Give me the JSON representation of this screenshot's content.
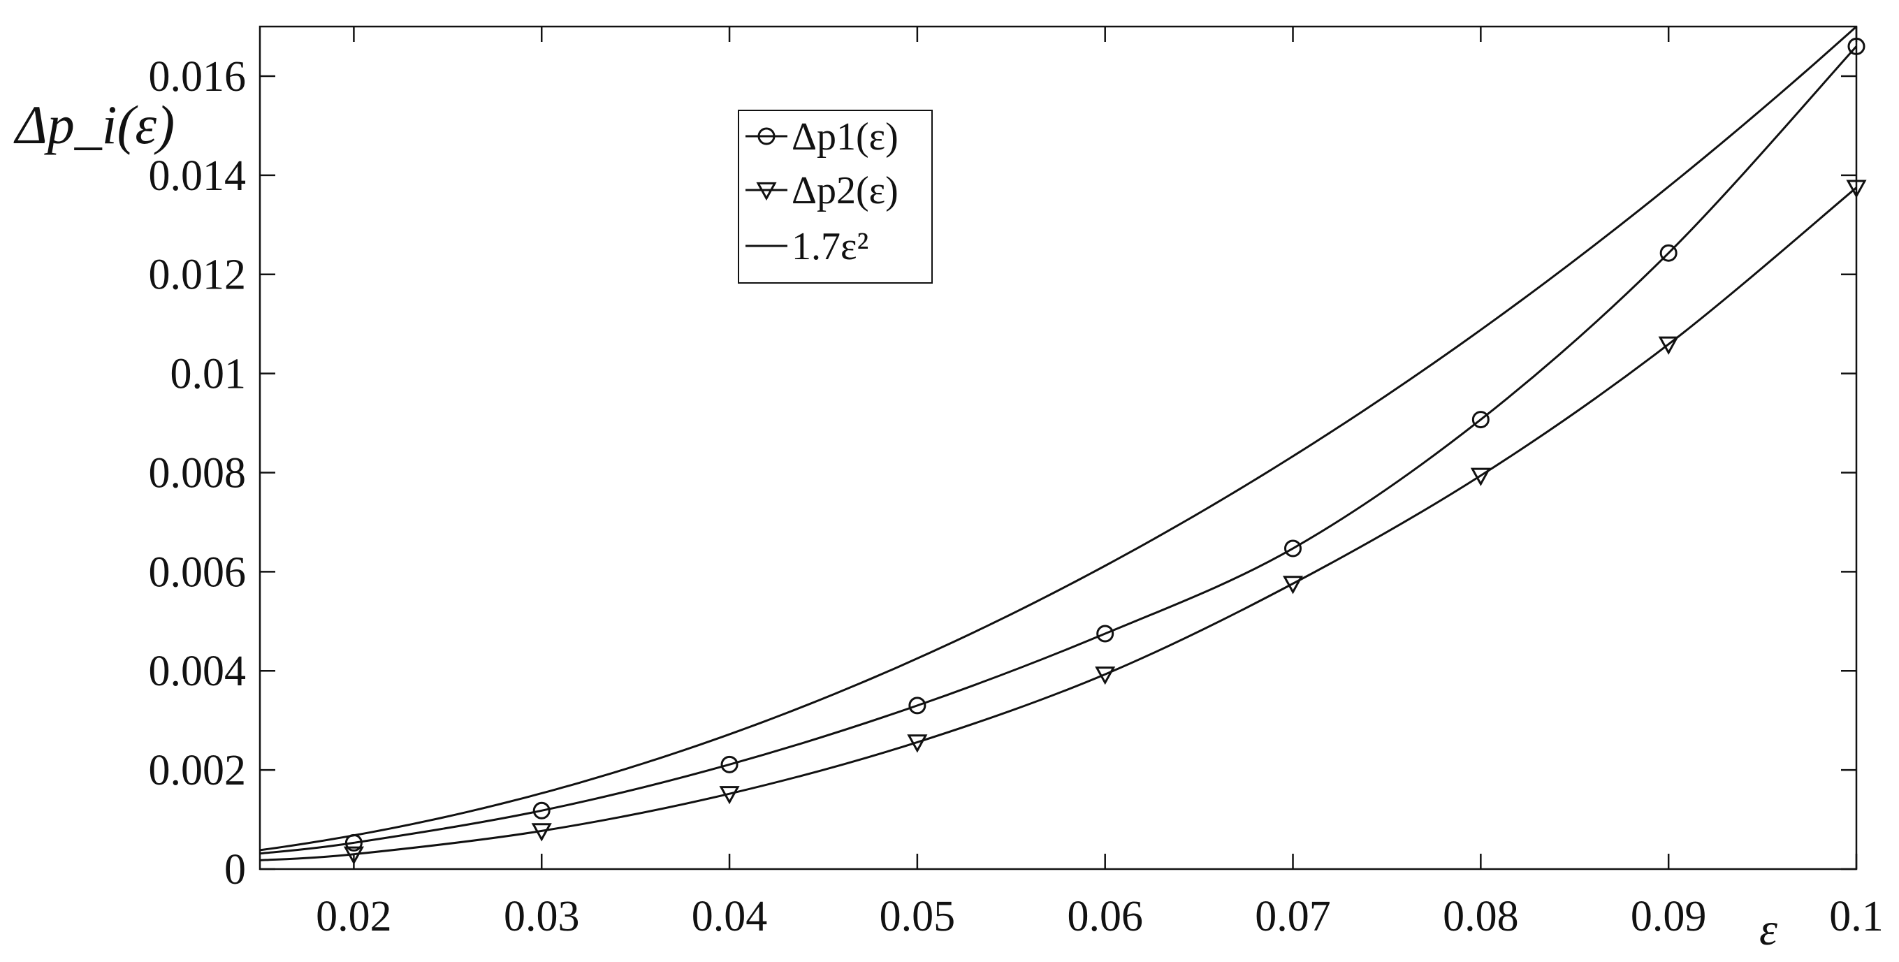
{
  "chart_data": {
    "type": "line",
    "xlabel": "ε",
    "ylabel": "Δp_i(ε)",
    "xlim": [
      0.015,
      0.1
    ],
    "ylim": [
      0,
      0.017
    ],
    "x_ticks": [
      0.02,
      0.03,
      0.04,
      0.05,
      0.06,
      0.07,
      0.08,
      0.09,
      0.1
    ],
    "x_tick_labels": [
      "0.02",
      "0.03",
      "0.04",
      "0.05",
      "0.06",
      "0.07",
      "0.08",
      "0.09",
      "0.1"
    ],
    "y_ticks": [
      0,
      0.002,
      0.004,
      0.006,
      0.008,
      0.01,
      0.012,
      0.014,
      0.016
    ],
    "y_tick_labels": [
      "0",
      "0.002",
      "0.004",
      "0.006",
      "0.008",
      "0.01",
      "0.012",
      "0.014",
      "0.016"
    ],
    "grid": false,
    "legend_position": "top-center",
    "series": [
      {
        "name": "Δp1(ε)",
        "marker": "circle",
        "x": [
          0.02,
          0.03,
          0.04,
          0.05,
          0.06,
          0.07,
          0.08,
          0.09,
          0.1
        ],
        "y": [
          0.00053,
          0.00118,
          0.00211,
          0.0033,
          0.00475,
          0.00647,
          0.00907,
          0.01243,
          0.0166
        ]
      },
      {
        "name": "Δp2(ε)",
        "marker": "triangle-down",
        "x": [
          0.02,
          0.03,
          0.04,
          0.05,
          0.06,
          0.07,
          0.08,
          0.09,
          0.1
        ],
        "y": [
          0.0003,
          0.00077,
          0.00152,
          0.00256,
          0.00393,
          0.00576,
          0.00794,
          0.01059,
          0.01375
        ]
      },
      {
        "name": "1.7ε²",
        "marker": "none",
        "formula_coefficient": 1.7
      }
    ]
  }
}
